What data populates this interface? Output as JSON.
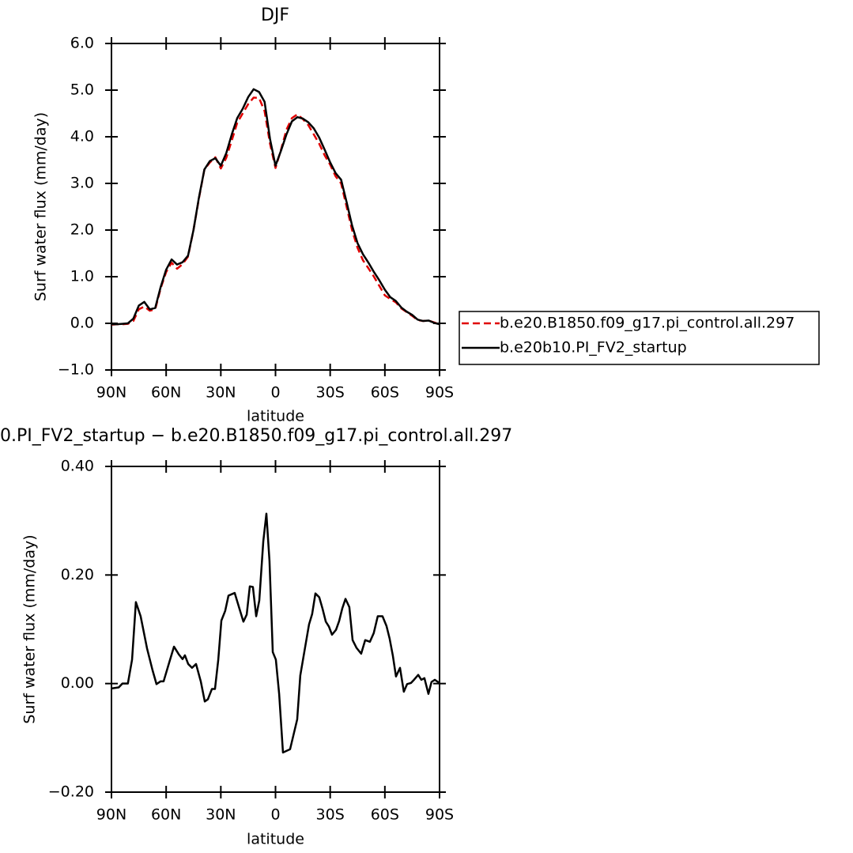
{
  "chart_data": [
    {
      "type": "line",
      "title": "DJF",
      "xlabel": "latitude",
      "ylabel": "Surf water flux (mm/day)",
      "x": [
        90,
        87,
        84,
        81,
        78,
        75,
        72,
        69,
        66,
        63,
        60,
        57,
        54,
        51,
        48,
        45,
        42,
        39,
        36,
        33,
        30,
        27,
        24,
        21,
        18,
        15,
        12,
        9,
        6,
        3,
        0,
        -3,
        -6,
        -9,
        -12,
        -15,
        -18,
        -21,
        -24,
        -27,
        -30,
        -33,
        -36,
        -39,
        -42,
        -45,
        -48,
        -51,
        -54,
        -57,
        -60,
        -63,
        -66,
        -69,
        -72,
        -75,
        -78,
        -81,
        -84,
        -87,
        -90
      ],
      "series": [
        {
          "name": "b.e20.B1850.f09_g17.pi_control.all.297",
          "color": "#e00000",
          "line_style": "dashed",
          "values": [
            -0.03,
            -0.02,
            -0.02,
            -0.01,
            0.05,
            0.3,
            0.36,
            0.27,
            0.3,
            0.75,
            1.1,
            1.3,
            1.17,
            1.27,
            1.43,
            2.0,
            2.68,
            3.3,
            3.45,
            3.56,
            3.32,
            3.55,
            3.92,
            4.3,
            4.5,
            4.7,
            4.84,
            4.83,
            4.55,
            3.85,
            3.33,
            3.72,
            4.15,
            4.4,
            4.48,
            4.38,
            4.25,
            4.05,
            3.85,
            3.6,
            3.4,
            3.15,
            3.0,
            2.5,
            2.0,
            1.62,
            1.35,
            1.18,
            1.0,
            0.8,
            0.6,
            0.52,
            0.45,
            0.32,
            0.24,
            0.16,
            0.07,
            0.05,
            0.06,
            0.02,
            -0.02
          ]
        },
        {
          "name": "b.e20b10.PI_FV2_startup",
          "color": "#000000",
          "line_style": "solid",
          "values": [
            -0.02,
            -0.02,
            -0.01,
            0.0,
            0.1,
            0.38,
            0.46,
            0.3,
            0.33,
            0.78,
            1.15,
            1.37,
            1.26,
            1.31,
            1.45,
            2.0,
            2.7,
            3.3,
            3.48,
            3.54,
            3.38,
            3.65,
            4.05,
            4.4,
            4.6,
            4.85,
            5.02,
            4.96,
            4.75,
            3.95,
            3.38,
            3.7,
            4.05,
            4.33,
            4.42,
            4.39,
            4.31,
            4.18,
            3.98,
            3.72,
            3.45,
            3.22,
            3.08,
            2.6,
            2.1,
            1.72,
            1.48,
            1.3,
            1.1,
            0.92,
            0.72,
            0.56,
            0.48,
            0.34,
            0.25,
            0.18,
            0.08,
            0.05,
            0.06,
            0.01,
            -0.02
          ]
        }
      ],
      "xlim": [
        90,
        -90
      ],
      "xticks": [
        {
          "value": 90,
          "label": "90N"
        },
        {
          "value": 60,
          "label": "60N"
        },
        {
          "value": 30,
          "label": "30N"
        },
        0,
        {
          "value": -30,
          "label": "30S"
        },
        {
          "value": -60,
          "label": "60S"
        },
        {
          "value": -90,
          "label": "90S"
        }
      ],
      "ylim": [
        -1,
        6
      ],
      "yticks": [
        {
          "value": -1,
          "label": "−1.0"
        },
        {
          "value": 0,
          "label": "0.0"
        },
        {
          "value": 1,
          "label": "1.0"
        },
        {
          "value": 2,
          "label": "2.0"
        },
        {
          "value": 3,
          "label": "3.0"
        },
        {
          "value": 4,
          "label": "4.0"
        },
        {
          "value": 5,
          "label": "5.0"
        },
        {
          "value": 6,
          "label": "6.0"
        }
      ],
      "grid": false,
      "legend": "right"
    },
    {
      "type": "line",
      "title": "0.PI_FV2_startup − b.e20.B1850.f09_g17.pi_control.all.297",
      "xlabel": "latitude",
      "ylabel": "Surf water flux (mm/day)",
      "x": [
        90,
        86,
        84,
        81,
        78.7,
        76.6,
        74,
        70.5,
        67.5,
        65.3,
        63.1,
        61.4,
        58.3,
        55.7,
        53.1,
        51,
        49.7,
        47.9,
        45.8,
        43.6,
        41,
        38.8,
        37.1,
        34.9,
        33.2,
        31.4,
        29.7,
        27.6,
        25.8,
        22.4,
        19.7,
        17.6,
        15.8,
        14.1,
        12.4,
        10.6,
        8.9,
        6.7,
        5,
        3.3,
        1.5,
        -0.2,
        -2,
        -4.1,
        -8,
        -11.9,
        -13.6,
        -16.2,
        -18.4,
        -20.1,
        -21.9,
        -24,
        -25.8,
        -27.6,
        -29.3,
        -31,
        -33.2,
        -34.9,
        -36.6,
        -38.4,
        -40.5,
        -42.3,
        -44.4,
        -47,
        -49.2,
        -51.8,
        -53.9,
        -56.1,
        -58.7,
        -60.9,
        -62.6,
        -64.4,
        -66.1,
        -68.3,
        -70.4,
        -72.2,
        -74.3,
        -76,
        -78.3,
        -80,
        -81.7,
        -83.9,
        -85.6,
        -87.4,
        -90
      ],
      "series": [
        {
          "color": "#000000",
          "line_style": "solid",
          "values": [
            -0.009,
            -0.007,
            0.0,
            0.0,
            0.044,
            0.15,
            0.124,
            0.065,
            0.025,
            -0.001,
            0.004,
            0.004,
            0.039,
            0.068,
            0.054,
            0.045,
            0.052,
            0.036,
            0.029,
            0.036,
            0.004,
            -0.033,
            -0.029,
            -0.01,
            -0.01,
            0.044,
            0.116,
            0.134,
            0.162,
            0.167,
            0.137,
            0.114,
            0.127,
            0.179,
            0.178,
            0.124,
            0.153,
            0.262,
            0.313,
            0.226,
            0.058,
            0.044,
            -0.019,
            -0.127,
            -0.121,
            -0.066,
            0.015,
            0.066,
            0.109,
            0.128,
            0.166,
            0.159,
            0.138,
            0.114,
            0.105,
            0.09,
            0.099,
            0.115,
            0.138,
            0.156,
            0.141,
            0.08,
            0.066,
            0.055,
            0.08,
            0.077,
            0.093,
            0.124,
            0.124,
            0.106,
            0.083,
            0.051,
            0.013,
            0.029,
            -0.015,
            -0.001,
            0.001,
            0.007,
            0.016,
            0.007,
            0.01,
            -0.019,
            0.003,
            0.007,
            0.001
          ]
        }
      ],
      "xlim": [
        90,
        -90
      ],
      "xticks": [
        {
          "value": 90,
          "label": "90N"
        },
        {
          "value": 60,
          "label": "60N"
        },
        {
          "value": 30,
          "label": "30N"
        },
        0,
        {
          "value": -30,
          "label": "30S"
        },
        {
          "value": -60,
          "label": "60S"
        },
        {
          "value": -90,
          "label": "90S"
        }
      ],
      "ylim": [
        -0.2,
        0.4
      ],
      "yticks": [
        {
          "value": -0.2,
          "label": "−0.20"
        },
        {
          "value": 0,
          "label": "0.00"
        },
        {
          "value": 0.2,
          "label": "0.20"
        },
        {
          "value": 0.4,
          "label": "0.40"
        }
      ],
      "grid": false
    }
  ]
}
